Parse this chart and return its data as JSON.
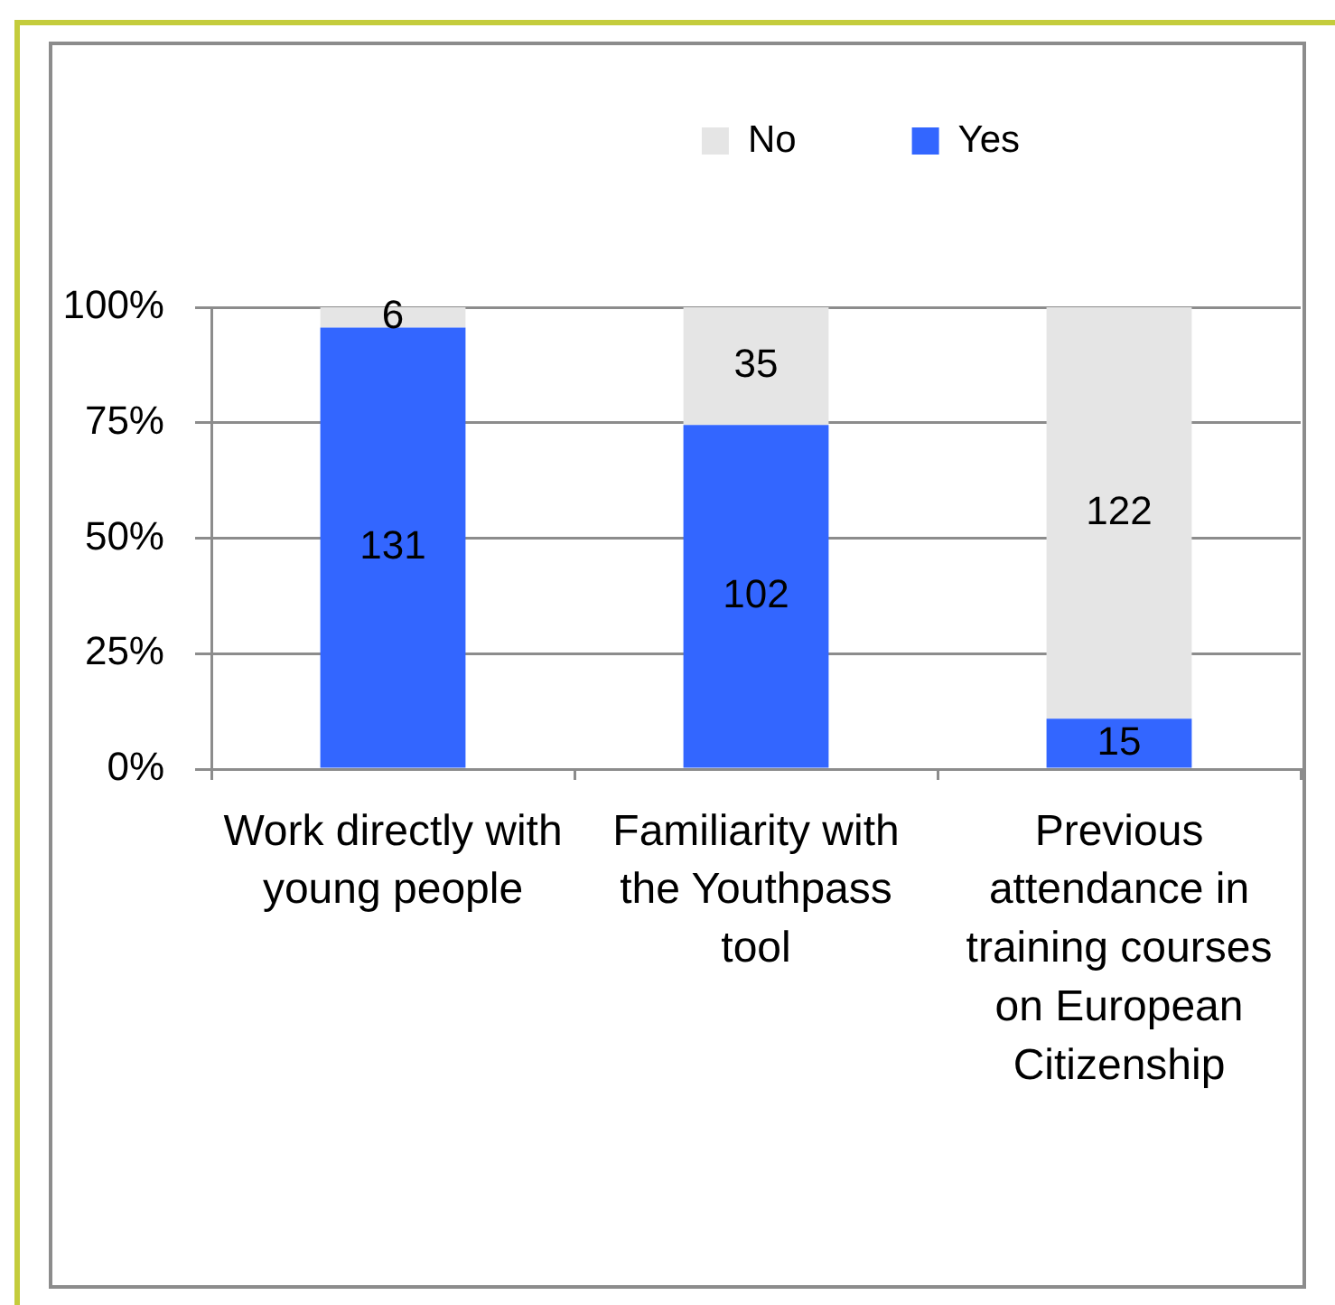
{
  "chart_data": {
    "type": "bar",
    "stacked": true,
    "categories": [
      "Work directly with young people",
      "Familiarity with the Youthpass tool",
      "Previous attendance in training courses on European Citizenship"
    ],
    "series": [
      {
        "name": "Yes",
        "color": "#3366ff",
        "values": [
          95.6,
          74.5,
          10.9
        ]
      },
      {
        "name": "No",
        "color": "#e5e5e5",
        "values": [
          4.4,
          25.5,
          89.1
        ]
      }
    ],
    "annotations": [
      "131",
      "102",
      "15",
      "6",
      "35",
      "122"
    ],
    "ylim": [
      0,
      100
    ],
    "yticks": [
      {
        "value": 0,
        "label": "0%"
      },
      {
        "value": 25,
        "label": "25%"
      },
      {
        "value": 50,
        "label": "50%"
      },
      {
        "value": 75,
        "label": "75%"
      },
      {
        "value": 100,
        "label": "100%"
      }
    ],
    "grid": "y",
    "legend": "top"
  }
}
